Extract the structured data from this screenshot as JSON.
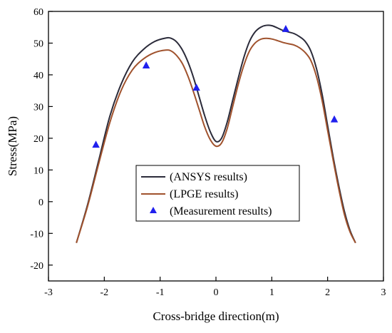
{
  "chart_data": {
    "type": "line",
    "title": "",
    "xlabel": "Cross-bridge direction(m)",
    "ylabel": "Stress(MPa)",
    "xlim": [
      -3,
      3
    ],
    "ylim": [
      -25,
      60
    ],
    "xticks": [
      -3,
      -2,
      -1,
      0,
      1,
      2,
      3
    ],
    "yticks": [
      -20,
      -10,
      0,
      10,
      20,
      30,
      40,
      50,
      60
    ],
    "grid": false,
    "legend_position": "lower-center",
    "series": [
      {
        "name": "(ANSYS results)",
        "kind": "line",
        "color": "#2b2b3a",
        "x": [
          -2.5,
          -2.3,
          -2.1,
          -1.9,
          -1.7,
          -1.5,
          -1.3,
          -1.1,
          -0.9,
          -0.8,
          -0.7,
          -0.6,
          -0.5,
          -0.4,
          -0.3,
          -0.2,
          -0.1,
          0.0,
          0.1,
          0.2,
          0.3,
          0.4,
          0.5,
          0.6,
          0.7,
          0.8,
          0.9,
          1.0,
          1.1,
          1.2,
          1.3,
          1.4,
          1.5,
          1.6,
          1.7,
          1.8,
          1.9,
          2.0,
          2.1,
          2.2,
          2.3,
          2.4,
          2.5
        ],
        "y": [
          -13,
          -1,
          13,
          27,
          37,
          44,
          48,
          50.5,
          51.6,
          51.5,
          50.3,
          47.8,
          44,
          39,
          33,
          27,
          22,
          19,
          20,
          25,
          32,
          39,
          45.5,
          50.5,
          53.5,
          55,
          55.6,
          55.5,
          54.8,
          54,
          53.5,
          53,
          52,
          50.5,
          47.5,
          42,
          34,
          24,
          14,
          5,
          -3,
          -9,
          -13
        ]
      },
      {
        "name": "(LPGE results)",
        "kind": "line",
        "color": "#a0522d",
        "x": [
          -2.5,
          -2.3,
          -2.1,
          -1.9,
          -1.7,
          -1.5,
          -1.3,
          -1.1,
          -0.9,
          -0.8,
          -0.7,
          -0.6,
          -0.5,
          -0.4,
          -0.3,
          -0.2,
          -0.1,
          0.0,
          0.1,
          0.2,
          0.3,
          0.4,
          0.5,
          0.6,
          0.7,
          0.8,
          0.9,
          1.0,
          1.1,
          1.2,
          1.3,
          1.4,
          1.5,
          1.6,
          1.7,
          1.8,
          1.9,
          2.0,
          2.1,
          2.2,
          2.3,
          2.4,
          2.5
        ],
        "y": [
          -13,
          -1.5,
          12,
          25,
          35,
          41.5,
          45,
          47,
          47.8,
          47.5,
          46,
          43.5,
          39.5,
          34.5,
          29,
          23.5,
          19.5,
          17.5,
          18.5,
          23,
          30,
          37,
          43,
          47.5,
          50,
          51.2,
          51.5,
          51.3,
          50.8,
          50.2,
          49.8,
          49.4,
          48.5,
          47,
          44.5,
          39.5,
          32,
          22.5,
          13,
          4,
          -4,
          -9.5,
          -13
        ]
      },
      {
        "name": "(Measurement results)",
        "kind": "scatter",
        "marker": "triangle",
        "color": "#2020ee",
        "x": [
          -2.15,
          -1.25,
          -0.35,
          1.25,
          2.12
        ],
        "y": [
          18,
          43,
          36,
          54.5,
          26
        ]
      }
    ]
  }
}
